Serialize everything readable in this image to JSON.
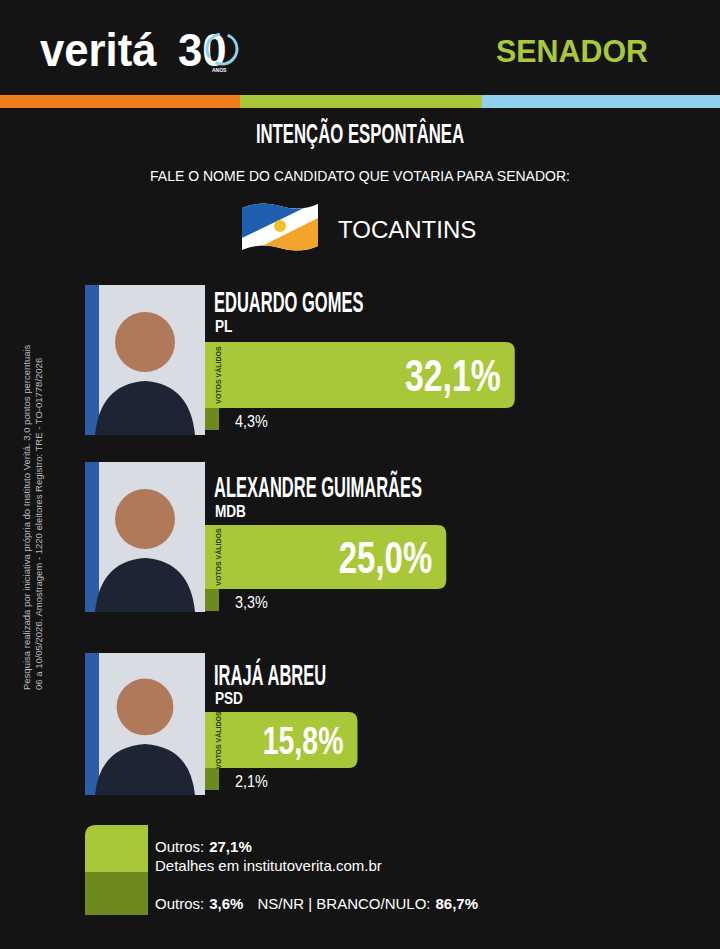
{
  "header": {
    "brand": "veritá",
    "brand_number": "30",
    "brand_sub": "ANOS",
    "office": "SENADOR",
    "section": "INTENÇÃO ESPONTÂNEA",
    "question": "FALE O NOME DO CANDIDATO QUE VOTARIA PARA SENADOR:",
    "state": "TOCANTINS"
  },
  "side_note": [
    "Pesquisa realizada por iniciativa própria do Instituto Veritá. 3,0 pontos percentuais",
    "06 a 10/05/2026. Amostragem - 1220 eleitores Registro: TRE - TO-01778/2026"
  ],
  "chart_data": {
    "type": "bar",
    "orientation": "horizontal",
    "data_labels": true,
    "tick_labels": false,
    "grid": false,
    "categories": [
      "EDUARDO GOMES",
      "ALEXANDRE GUIMARÃES",
      "IRAJÁ ABREU"
    ],
    "parties": [
      "PL",
      "MDB",
      "PSD"
    ],
    "xlim": [
      0,
      40
    ],
    "series": [
      {
        "name": "VOTOS VÁLIDOS",
        "color": "#a8c83a",
        "values": [
          32.1,
          25.0,
          15.8
        ],
        "value_labels": [
          "32,1%",
          "25,0%",
          "15,8%"
        ]
      },
      {
        "color": "#6e8a1e",
        "values": [
          4.3,
          3.3,
          2.1
        ],
        "value_labels": [
          "4,3%",
          "3,3%",
          "2,1%"
        ]
      }
    ]
  },
  "footer": {
    "others_valid_label": "Outros:",
    "others_valid": "27,1%",
    "details": "Detalhes em institutoverita.com.br",
    "others_total_label": "Outros:",
    "others_total": "3,6%",
    "nsnr_label": "NS/NR | BRANCO/NULO:",
    "nsnr_value": "86,7%"
  }
}
